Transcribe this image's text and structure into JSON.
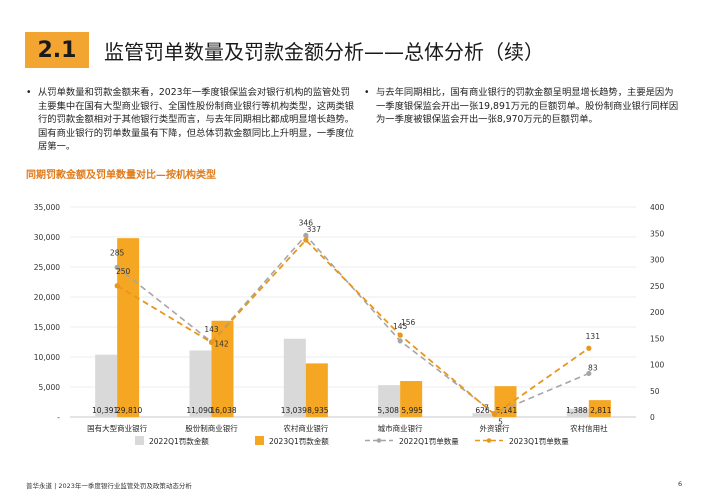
{
  "header": {
    "section_number": "2.1",
    "title": "监管罚单数量及罚款金额分析——总体分析（续）"
  },
  "bullets": {
    "left": "从罚单数量和罚款金额来看，2023年一季度银保监会对银行机构的监管处罚主要集中在国有大型商业银行、全国性股份制商业银行等机构类型，这两类银行的罚款金额相对于其他银行类型而言，与去年同期相比都成明显增长趋势。国有商业银行的罚单数量虽有下降，但总体罚款金额同比上升明显，一季度位居第一。",
    "right": "与去年同期相比，国有商业银行的罚款金额呈明显增长趋势，主要是因为一季度银保监会开出一张19,891万元的巨额罚单。股份制商业银行同样因为一季度被银保监会开出一张8,970万元的巨额罚单。"
  },
  "chart_title": "同期罚款金额及罚单数量对比—按机构类型",
  "chart_data": {
    "type": "bar+line",
    "categories": [
      "国有大型商业银行",
      "股份制商业银行",
      "农村商业银行",
      "城市商业银行",
      "外资银行",
      "农村信用社"
    ],
    "bar_series": [
      {
        "name": "2022Q1罚款金额",
        "values": [
          10391,
          11090,
          13039,
          5308,
          626,
          1388
        ],
        "labels": [
          "10,391",
          "11,090",
          "13,039",
          "5,308",
          "626",
          "1,388"
        ],
        "color": "#d9d9d9"
      },
      {
        "name": "2023Q1罚款金额",
        "values": [
          29810,
          16038,
          8935,
          5995,
          5141,
          2811
        ],
        "labels": [
          "29,810",
          "16,038",
          "8,935",
          "5,995",
          "5,141",
          "2,811"
        ],
        "color": "#f5a623"
      }
    ],
    "line_series": [
      {
        "name": "2022Q1罚单数量",
        "values": [
          285,
          143,
          346,
          145,
          7,
          83
        ],
        "color": "#a6a6a6"
      },
      {
        "name": "2023Q1罚单数量",
        "values": [
          250,
          142,
          337,
          156,
          5,
          131
        ],
        "color": "#e8961c"
      }
    ],
    "y_left": {
      "min": 0,
      "max": 35000,
      "ticks": [
        "-",
        "5,000",
        "10,000",
        "15,000",
        "20,000",
        "25,000",
        "30,000",
        "35,000"
      ]
    },
    "y_right": {
      "min": 0,
      "max": 400,
      "ticks": [
        "0",
        "50",
        "100",
        "150",
        "200",
        "250",
        "300",
        "350",
        "400"
      ]
    },
    "legend_position": "bottom"
  },
  "footer": {
    "text": "普华永道 | 2023年一季度银行业监管处罚及政策动态分析",
    "page": "6"
  }
}
